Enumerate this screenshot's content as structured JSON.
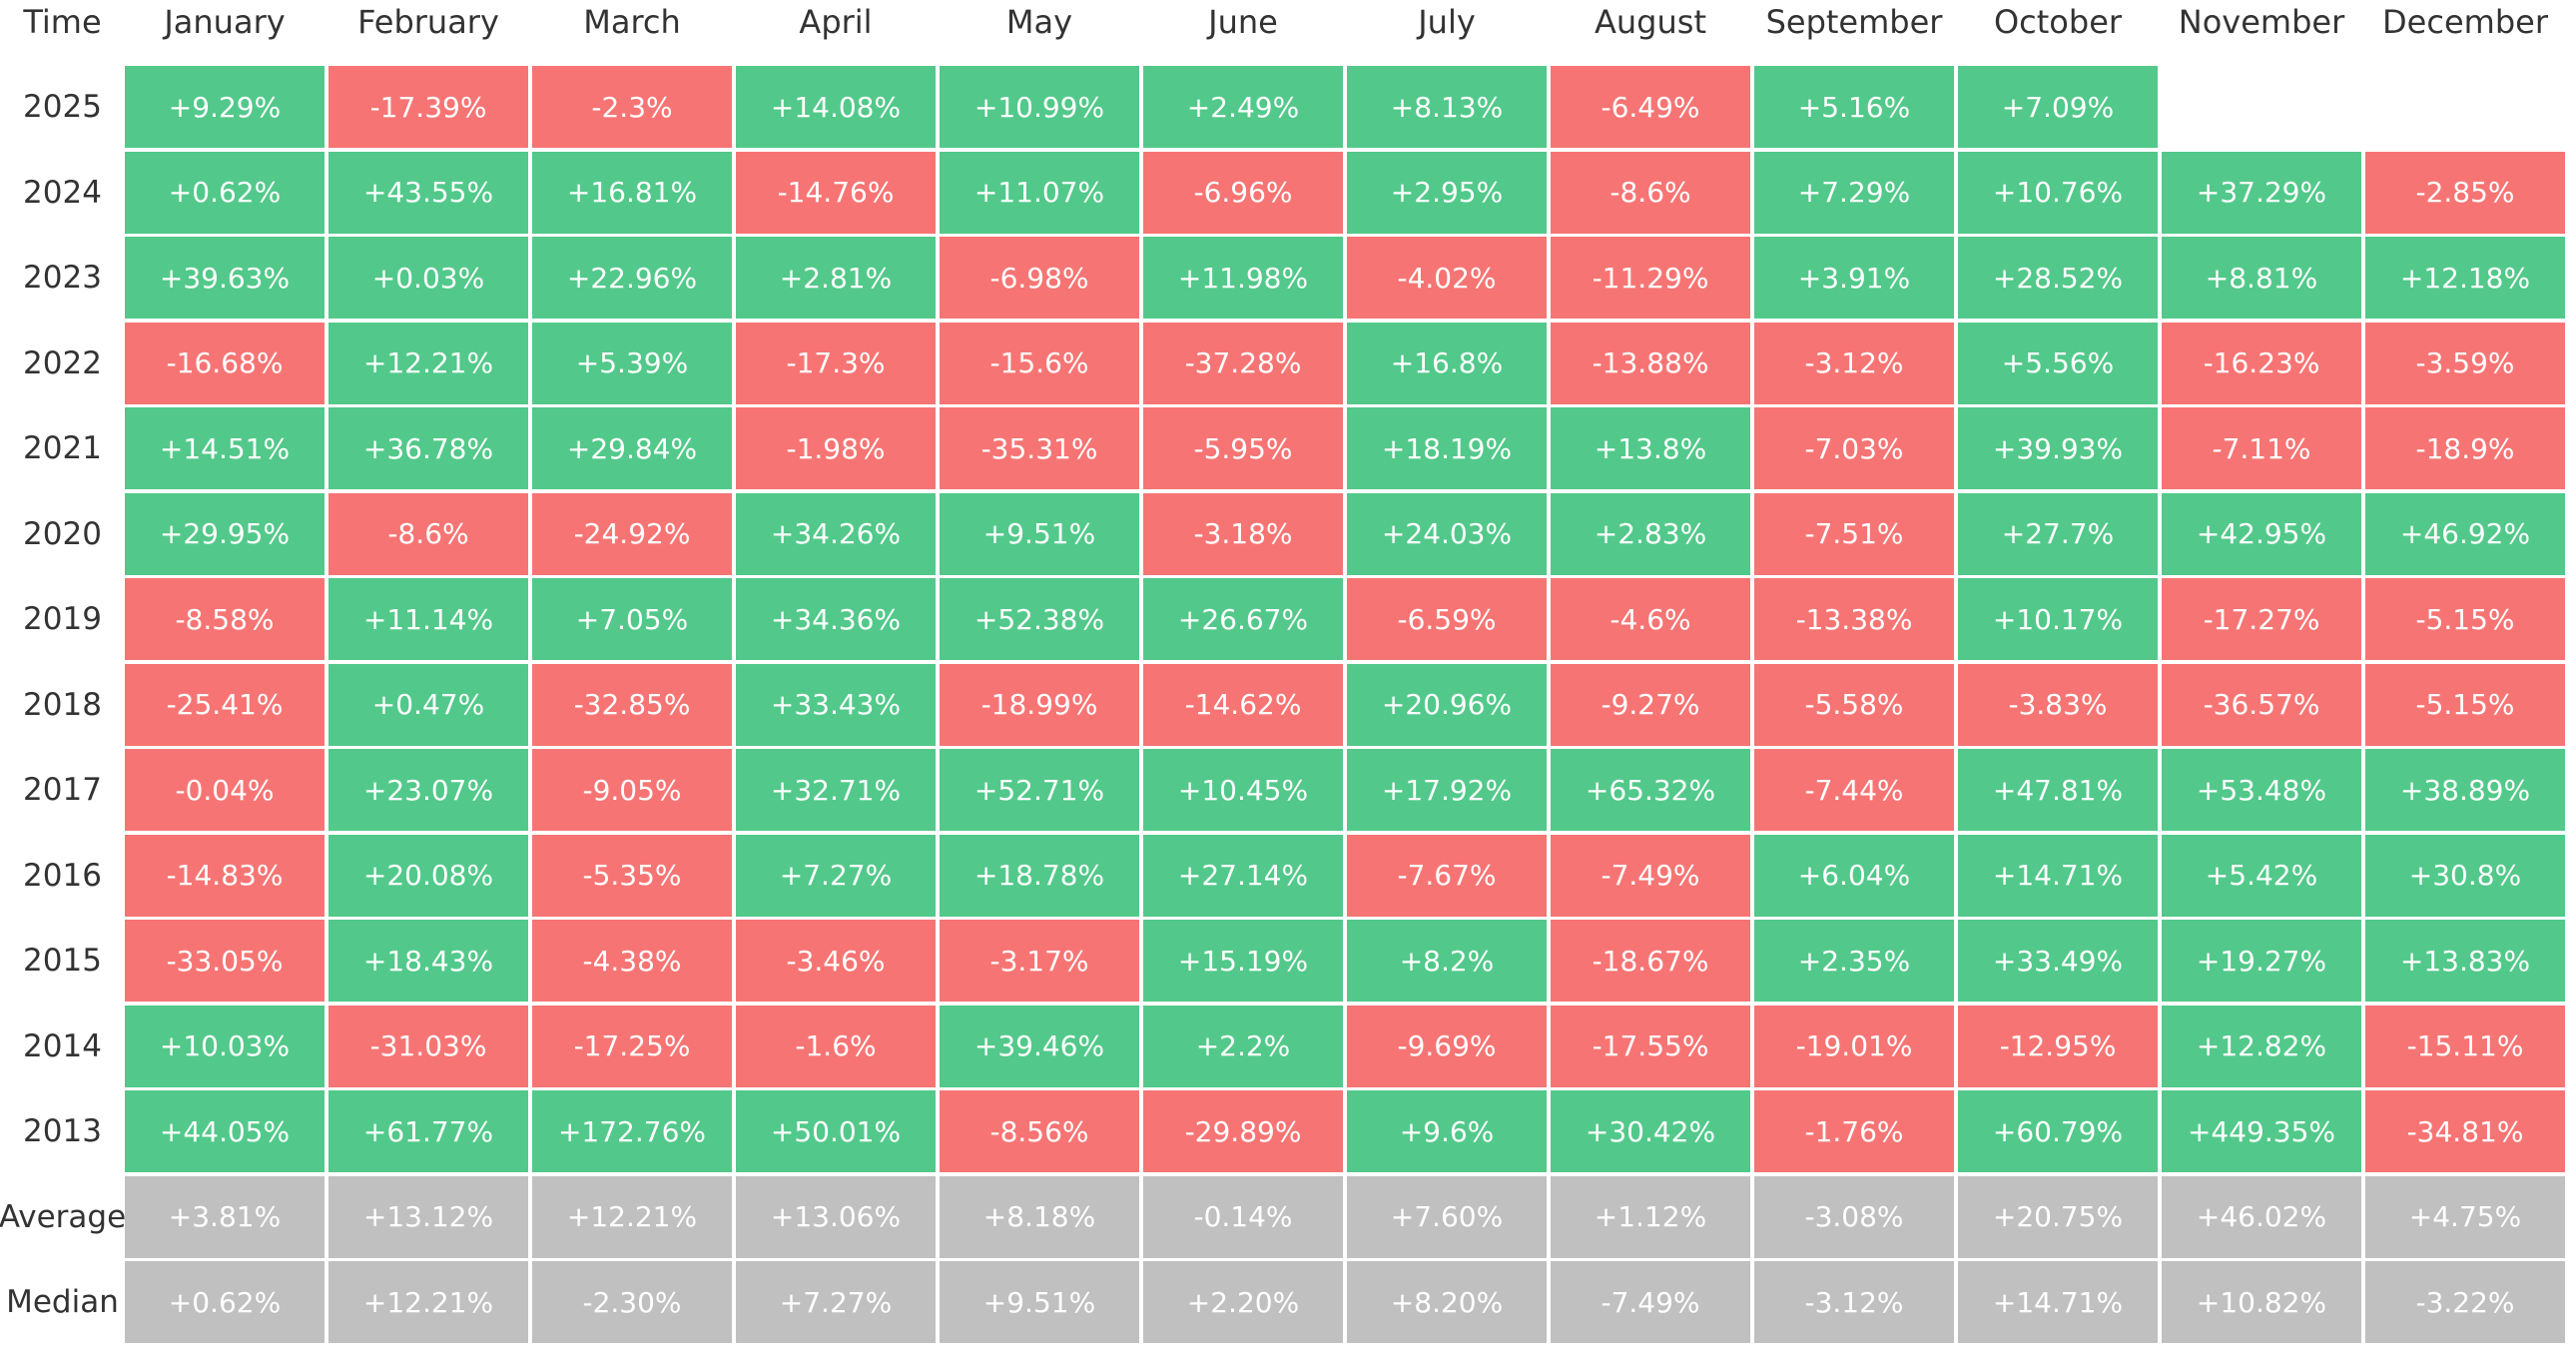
{
  "table": {
    "header": [
      "Time",
      "January",
      "February",
      "March",
      "April",
      "May",
      "June",
      "July",
      "August",
      "September",
      "October",
      "November",
      "December"
    ],
    "colors": {
      "up": "#52c98a",
      "down": "#f67574",
      "summary": "#c0c0c0"
    },
    "rows": [
      {
        "label": "2025",
        "cells": [
          "+9.29%",
          "-17.39%",
          "-2.3%",
          "+14.08%",
          "+10.99%",
          "+2.49%",
          "+8.13%",
          "-6.49%",
          "+5.16%",
          "+7.09%"
        ]
      },
      {
        "label": "2024",
        "cells": [
          "+0.62%",
          "+43.55%",
          "+16.81%",
          "-14.76%",
          "+11.07%",
          "-6.96%",
          "+2.95%",
          "-8.6%",
          "+7.29%",
          "+10.76%",
          "+37.29%",
          "-2.85%"
        ]
      },
      {
        "label": "2023",
        "cells": [
          "+39.63%",
          "+0.03%",
          "+22.96%",
          "+2.81%",
          "-6.98%",
          "+11.98%",
          "-4.02%",
          "-11.29%",
          "+3.91%",
          "+28.52%",
          "+8.81%",
          "+12.18%"
        ]
      },
      {
        "label": "2022",
        "cells": [
          "-16.68%",
          "+12.21%",
          "+5.39%",
          "-17.3%",
          "-15.6%",
          "-37.28%",
          "+16.8%",
          "-13.88%",
          "-3.12%",
          "+5.56%",
          "-16.23%",
          "-3.59%"
        ]
      },
      {
        "label": "2021",
        "cells": [
          "+14.51%",
          "+36.78%",
          "+29.84%",
          "-1.98%",
          "-35.31%",
          "-5.95%",
          "+18.19%",
          "+13.8%",
          "-7.03%",
          "+39.93%",
          "-7.11%",
          "-18.9%"
        ]
      },
      {
        "label": "2020",
        "cells": [
          "+29.95%",
          "-8.6%",
          "-24.92%",
          "+34.26%",
          "+9.51%",
          "-3.18%",
          "+24.03%",
          "+2.83%",
          "-7.51%",
          "+27.7%",
          "+42.95%",
          "+46.92%"
        ]
      },
      {
        "label": "2019",
        "cells": [
          "-8.58%",
          "+11.14%",
          "+7.05%",
          "+34.36%",
          "+52.38%",
          "+26.67%",
          "-6.59%",
          "-4.6%",
          "-13.38%",
          "+10.17%",
          "-17.27%",
          "-5.15%"
        ]
      },
      {
        "label": "2018",
        "cells": [
          "-25.41%",
          "+0.47%",
          "-32.85%",
          "+33.43%",
          "-18.99%",
          "-14.62%",
          "+20.96%",
          "-9.27%",
          "-5.58%",
          "-3.83%",
          "-36.57%",
          "-5.15%"
        ]
      },
      {
        "label": "2017",
        "cells": [
          "-0.04%",
          "+23.07%",
          "-9.05%",
          "+32.71%",
          "+52.71%",
          "+10.45%",
          "+17.92%",
          "+65.32%",
          "-7.44%",
          "+47.81%",
          "+53.48%",
          "+38.89%"
        ]
      },
      {
        "label": "2016",
        "cells": [
          "-14.83%",
          "+20.08%",
          "-5.35%",
          "+7.27%",
          "+18.78%",
          "+27.14%",
          "-7.67%",
          "-7.49%",
          "+6.04%",
          "+14.71%",
          "+5.42%",
          "+30.8%"
        ]
      },
      {
        "label": "2015",
        "cells": [
          "-33.05%",
          "+18.43%",
          "-4.38%",
          "-3.46%",
          "-3.17%",
          "+15.19%",
          "+8.2%",
          "-18.67%",
          "+2.35%",
          "+33.49%",
          "+19.27%",
          "+13.83%"
        ]
      },
      {
        "label": "2014",
        "cells": [
          "+10.03%",
          "-31.03%",
          "-17.25%",
          "-1.6%",
          "+39.46%",
          "+2.2%",
          "-9.69%",
          "-17.55%",
          "-19.01%",
          "-12.95%",
          "+12.82%",
          "-15.11%"
        ]
      },
      {
        "label": "2013",
        "cells": [
          "+44.05%",
          "+61.77%",
          "+172.76%",
          "+50.01%",
          "-8.56%",
          "-29.89%",
          "+9.6%",
          "+30.42%",
          "-1.76%",
          "+60.79%",
          "+449.35%",
          "-34.81%"
        ]
      }
    ],
    "summary_rows": [
      {
        "label": "Average",
        "cells": [
          "+3.81%",
          "+13.12%",
          "+12.21%",
          "+13.06%",
          "+8.18%",
          "-0.14%",
          "+7.60%",
          "+1.12%",
          "-3.08%",
          "+20.75%",
          "+46.02%",
          "+4.75%"
        ]
      },
      {
        "label": "Median",
        "cells": [
          "+0.62%",
          "+12.21%",
          "-2.30%",
          "+7.27%",
          "+9.51%",
          "+2.20%",
          "+8.20%",
          "-7.49%",
          "-3.12%",
          "+14.71%",
          "+10.82%",
          "-3.22%"
        ]
      }
    ]
  }
}
